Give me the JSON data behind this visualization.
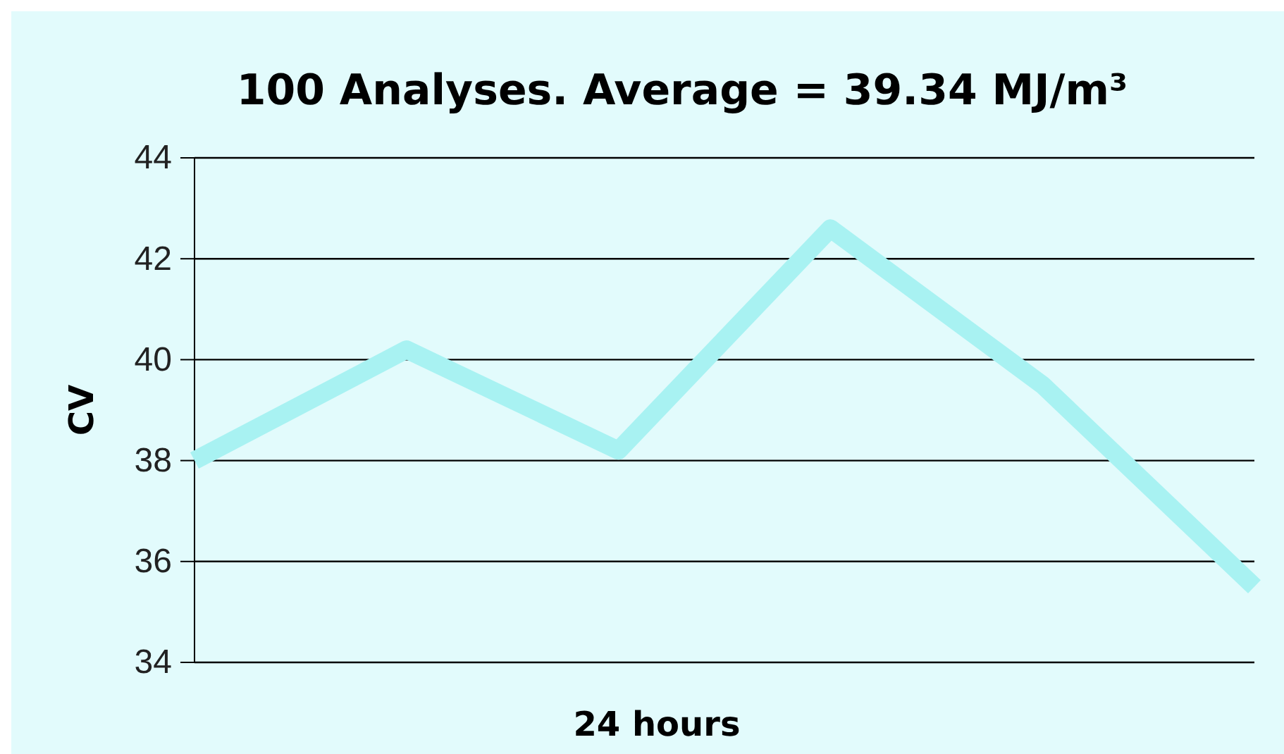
{
  "chart_data": {
    "type": "line",
    "title": "100 Analyses. Average = 39.34 MJ/m³",
    "xlabel": "24 hours",
    "ylabel": "CV",
    "categories": [
      null,
      null,
      null,
      null,
      null,
      null
    ],
    "series": [
      {
        "color": "#a8f2f2",
        "values": [
          38.0,
          40.2,
          38.2,
          42.6,
          39.5,
          35.5
        ]
      }
    ],
    "ylim": [
      34,
      44
    ],
    "yticks": [
      34,
      36,
      38,
      40,
      42,
      44
    ],
    "grid": "y",
    "marker": "none",
    "line_style": "solid"
  }
}
